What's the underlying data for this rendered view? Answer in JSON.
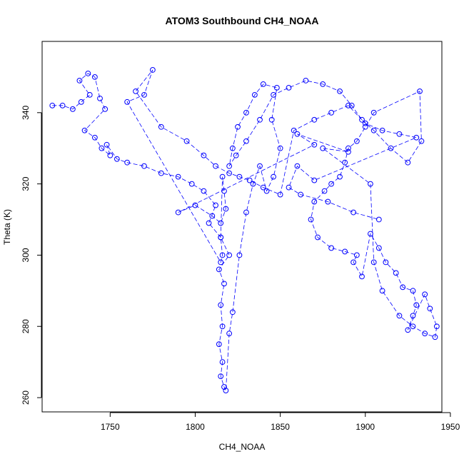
{
  "chart_data": {
    "type": "scatter",
    "title": "ATOM3 Southbound CH4_NOAA",
    "xlabel": "CH4_NOAA",
    "ylabel": "Theta (K)",
    "xlim": [
      1710,
      1945
    ],
    "ylim": [
      256,
      360
    ],
    "x_ticks": [
      1750,
      1800,
      1850,
      1900,
      1950
    ],
    "y_ticks": [
      260,
      280,
      300,
      320,
      340
    ],
    "grid": false,
    "legend": "none",
    "marker": "open-circle",
    "connected_by_lines": true,
    "series": [
      {
        "color": "#0000ff",
        "x": [
          1716,
          1722,
          1728,
          1733,
          1738,
          1732,
          1737,
          1741,
          1744,
          1747,
          1735,
          1741,
          1745,
          1750,
          1748,
          1754,
          1760,
          1770,
          1780,
          1790,
          1798,
          1805,
          1812,
          1808,
          1815,
          1820,
          1814,
          1817,
          1815,
          1816,
          1814,
          1816,
          1815,
          1817,
          1818,
          1820,
          1822,
          1826,
          1830,
          1834,
          1838,
          1842,
          1846,
          1850,
          1845,
          1848,
          1840,
          1835,
          1830,
          1825,
          1822,
          1820,
          1824,
          1830,
          1838,
          1846,
          1855,
          1865,
          1875,
          1885,
          1892,
          1898,
          1905,
          1915,
          1925,
          1933,
          1932,
          1905,
          1900,
          1895,
          1890,
          1888,
          1885,
          1880,
          1876,
          1870,
          1868,
          1872,
          1880,
          1888,
          1895,
          1893,
          1898,
          1903,
          1908,
          1912,
          1918,
          1922,
          1928,
          1930,
          1928,
          1925,
          1935,
          1938,
          1942,
          1941,
          1935,
          1928,
          1920,
          1910,
          1905,
          1903,
          1875,
          1890,
          1860,
          1870,
          1790,
          1800,
          1810,
          1815,
          1818,
          1817,
          1816,
          1815,
          1816,
          1815,
          1760,
          1770,
          1775,
          1765,
          1780,
          1795,
          1805,
          1812,
          1820,
          1826,
          1832,
          1840,
          1850,
          1858,
          1870,
          1880,
          1890,
          1900,
          1910,
          1920,
          1930,
          1870,
          1860,
          1855,
          1862,
          1878,
          1893,
          1908
        ],
        "y": [
          342,
          342,
          341,
          343,
          345,
          349,
          351,
          350,
          344,
          341,
          335,
          333,
          330,
          328,
          331,
          327,
          326,
          325,
          323,
          322,
          320,
          318,
          314,
          309,
          305,
          300,
          296,
          292,
          286,
          280,
          275,
          270,
          266,
          263,
          262,
          278,
          284,
          300,
          312,
          320,
          325,
          318,
          322,
          330,
          338,
          347,
          348,
          345,
          340,
          336,
          330,
          325,
          328,
          332,
          338,
          345,
          347,
          349,
          348,
          346,
          342,
          338,
          335,
          330,
          326,
          332,
          346,
          340,
          336,
          332,
          330,
          326,
          322,
          320,
          318,
          315,
          310,
          305,
          302,
          301,
          300,
          298,
          294,
          306,
          302,
          298,
          295,
          291,
          290,
          286,
          283,
          279,
          289,
          285,
          280,
          277,
          278,
          280,
          283,
          290,
          298,
          320,
          330,
          329,
          334,
          331,
          312,
          314,
          311,
          309,
          313,
          318,
          322,
          305,
          300,
          298,
          343,
          345,
          352,
          346,
          336,
          332,
          328,
          325,
          323,
          322,
          321,
          319,
          317,
          335,
          338,
          340,
          342,
          337,
          335,
          334,
          333,
          321,
          325,
          319,
          317,
          315,
          312,
          310
        ]
      }
    ]
  }
}
